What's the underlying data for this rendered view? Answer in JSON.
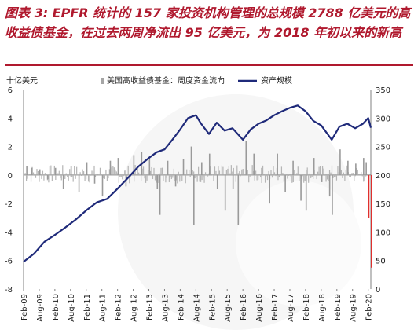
{
  "title": "图表 3: EPFR 统计的 157 家投资机构管理的总规模 2788 亿美元的高收益债基金，在过去两周净流出 95 亿美元，为 2018 年初以来的新高",
  "chart_data": {
    "type": "bar+line",
    "left_unit": "十亿美元",
    "left_ylim": [
      -8,
      6
    ],
    "left_ticks": [
      6,
      4,
      2,
      0,
      -2,
      -4,
      -6,
      -8
    ],
    "right_ylim": [
      0,
      350
    ],
    "right_ticks": [
      350,
      300,
      250,
      200,
      150,
      100,
      50,
      0
    ],
    "x_start": "2009-02",
    "x_end": "2020-03",
    "x_tick_labels": [
      "Feb-09",
      "Aug-09",
      "Feb-10",
      "Aug-10",
      "Feb-11",
      "Aug-11",
      "Feb-12",
      "Aug-12",
      "Feb-13",
      "Aug-13",
      "Feb-14",
      "Aug-14",
      "Feb-15",
      "Aug-15",
      "Feb-16",
      "Aug-16",
      "Feb-17",
      "Aug-17",
      "Feb-18",
      "Aug-18",
      "Feb-19",
      "Aug-19",
      "Feb-20"
    ],
    "legend": [
      {
        "name": "美国高收益债基金：周度资金流向",
        "color": "#a6a6a6",
        "kind": "bar",
        "axis": "left"
      },
      {
        "name": "资产规模",
        "color": "#1f2a7a",
        "kind": "line",
        "axis": "right"
      }
    ],
    "series": [
      {
        "name": "资产规模",
        "axis": "right",
        "x": [
          "2009-02",
          "2009-06",
          "2009-10",
          "2010-02",
          "2010-06",
          "2010-10",
          "2011-02",
          "2011-06",
          "2011-10",
          "2012-02",
          "2012-06",
          "2012-10",
          "2013-02",
          "2013-05",
          "2013-08",
          "2013-11",
          "2014-02",
          "2014-05",
          "2014-08",
          "2014-10",
          "2015-01",
          "2015-04",
          "2015-07",
          "2015-10",
          "2016-02",
          "2016-05",
          "2016-08",
          "2016-11",
          "2017-02",
          "2017-05",
          "2017-08",
          "2017-11",
          "2018-02",
          "2018-05",
          "2018-08",
          "2018-12",
          "2019-03",
          "2019-06",
          "2019-09",
          "2019-12",
          "2020-02",
          "2020-03"
        ],
        "values": [
          48,
          62,
          83,
          95,
          108,
          122,
          138,
          152,
          158,
          176,
          195,
          215,
          230,
          240,
          245,
          262,
          280,
          300,
          305,
          290,
          272,
          292,
          278,
          282,
          262,
          280,
          290,
          296,
          305,
          312,
          318,
          322,
          312,
          295,
          287,
          262,
          285,
          290,
          282,
          290,
          300,
          283
        ]
      },
      {
        "name": "美国高收益债基金：周度资金流向",
        "axis": "left",
        "x": [
          "2009-03",
          "2009-05",
          "2009-08",
          "2009-11",
          "2010-02",
          "2010-05",
          "2010-08",
          "2010-11",
          "2011-02",
          "2011-05",
          "2011-08",
          "2011-11",
          "2012-02",
          "2012-05",
          "2012-08",
          "2012-11",
          "2013-02",
          "2013-05",
          "2013-06",
          "2013-09",
          "2013-12",
          "2014-03",
          "2014-06",
          "2014-07",
          "2014-10",
          "2015-01",
          "2015-04",
          "2015-07",
          "2015-10",
          "2015-12",
          "2016-03",
          "2016-06",
          "2016-09",
          "2016-12",
          "2017-03",
          "2017-06",
          "2017-09",
          "2017-12",
          "2018-02",
          "2018-05",
          "2018-08",
          "2018-11",
          "2018-12",
          "2019-03",
          "2019-06",
          "2019-09",
          "2019-12",
          "2020-01",
          "2020-02",
          "2020-03"
        ],
        "values": [
          0.6,
          0.5,
          0.4,
          -0.3,
          0.5,
          -1.0,
          0.6,
          -1.2,
          0.9,
          -0.6,
          -1.5,
          1.0,
          1.2,
          -0.8,
          1.4,
          1.6,
          1.3,
          -1.0,
          -2.8,
          1.0,
          -0.8,
          1.1,
          2.0,
          -3.5,
          0.9,
          1.5,
          -1.0,
          -2.5,
          -1.0,
          -3.5,
          2.4,
          1.5,
          0.5,
          -2.0,
          1.5,
          -1.2,
          1.0,
          -1.8,
          -2.5,
          1.2,
          -0.5,
          -1.5,
          -2.8,
          1.8,
          1.0,
          0.8,
          1.2,
          0.9,
          -3.0,
          -6.5
        ]
      }
    ]
  }
}
